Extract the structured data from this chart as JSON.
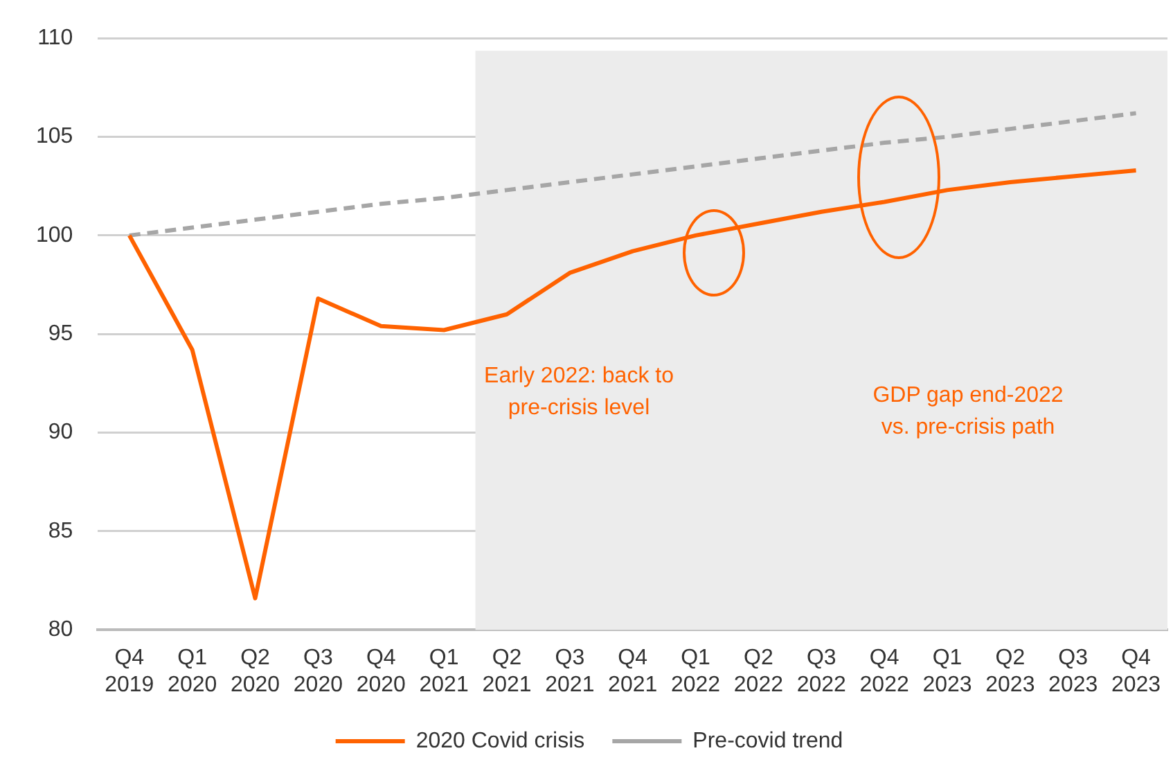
{
  "chart_data": {
    "type": "line",
    "categories": [
      "Q4 2019",
      "Q1 2020",
      "Q2 2020",
      "Q3 2020",
      "Q4 2020",
      "Q1 2021",
      "Q2 2021",
      "Q3 2021",
      "Q4 2021",
      "Q1 2022",
      "Q2 2022",
      "Q3 2022",
      "Q4 2022",
      "Q1 2023",
      "Q2 2023",
      "Q3 2023",
      "Q4 2023"
    ],
    "series": [
      {
        "name": "2020 Covid crisis",
        "color": "#ff6200",
        "line_style": "solid",
        "values": [
          100,
          94.2,
          81.6,
          96.8,
          95.4,
          95.2,
          96.0,
          98.1,
          99.2,
          100.0,
          100.6,
          101.2,
          101.7,
          102.3,
          102.7,
          103.0,
          103.3
        ]
      },
      {
        "name": "Pre-covid trend",
        "color": "#a6a6a6",
        "line_style": "dashed",
        "values": [
          100,
          100.4,
          100.8,
          101.2,
          101.6,
          101.9,
          102.3,
          102.7,
          103.1,
          103.5,
          103.9,
          104.3,
          104.7,
          105.0,
          105.4,
          105.8,
          106.2
        ]
      }
    ],
    "ylim": [
      80,
      110
    ],
    "yticks": [
      80,
      85,
      90,
      95,
      100,
      105,
      110
    ],
    "grid": "y",
    "legend": "bottom",
    "marker": "none",
    "bands": [
      {
        "axis": "x",
        "from": "Q2 2021",
        "to": "Q4 2023",
        "color": "#ececec"
      }
    ],
    "annotations": [
      "Early 2022: back to pre-crisis level",
      "GDP gap end-2022 vs. pre-crisis path"
    ]
  }
}
